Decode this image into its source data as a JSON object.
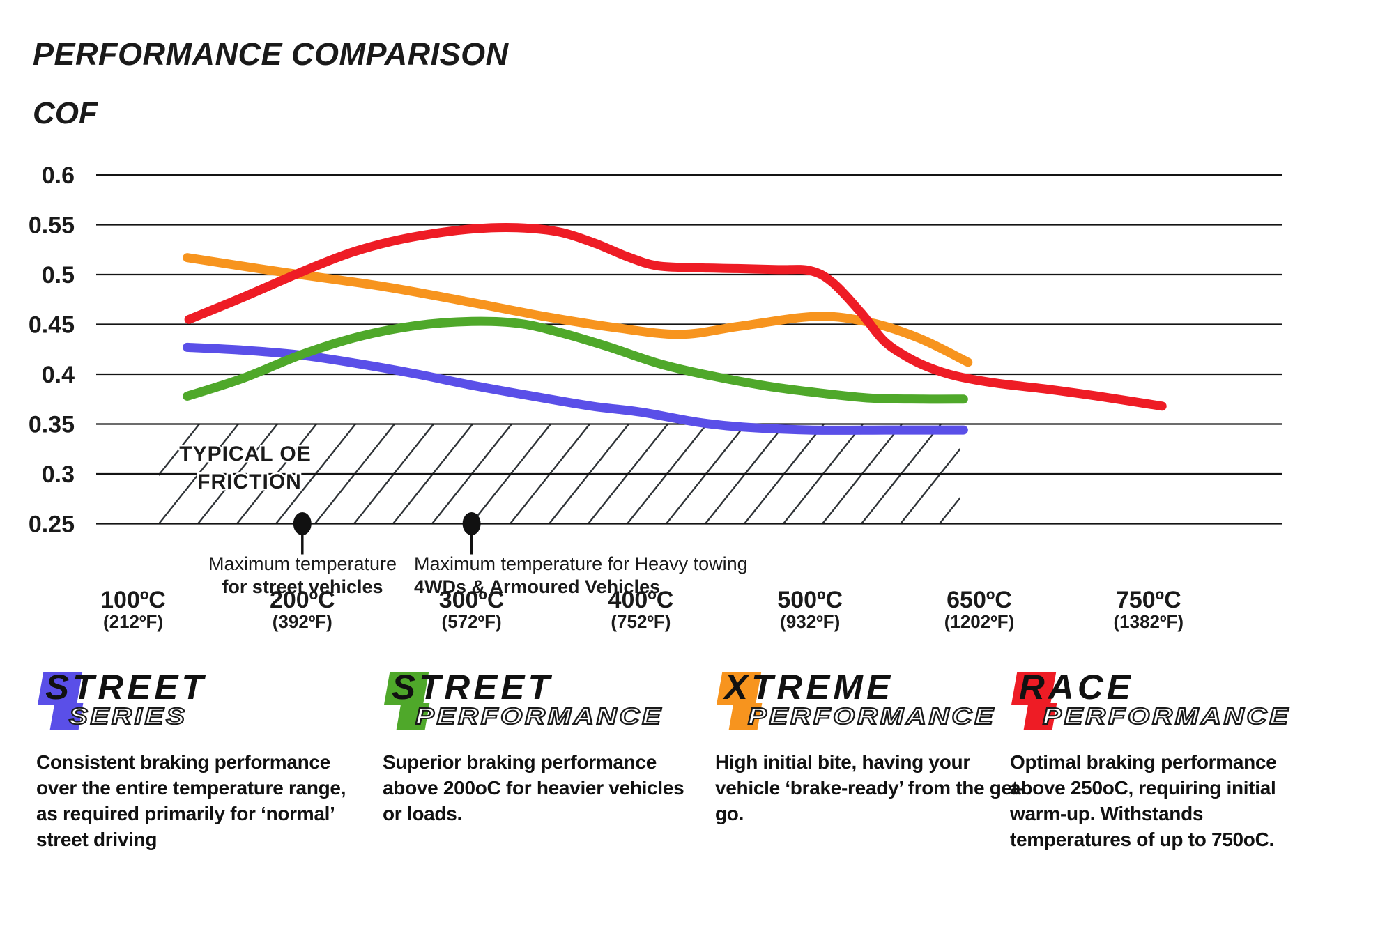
{
  "header": {
    "title": "PERFORMANCE COMPARISON",
    "cof": "COF"
  },
  "chart_data": {
    "type": "line",
    "title": "PERFORMANCE COMPARISON",
    "ylabel": "COF",
    "ylim": [
      0.25,
      0.6
    ],
    "grid": true,
    "y_axis": {
      "ticks": [
        0.6,
        0.55,
        0.5,
        0.45,
        0.4,
        0.35,
        0.3,
        0.25
      ]
    },
    "x_axis": {
      "unit": "°C",
      "ticks": [
        {
          "temp_c": 100,
          "label_c": "100ºC",
          "label_f": "(212ºF)"
        },
        {
          "temp_c": 200,
          "label_c": "200ºC",
          "label_f": "(392ºF)"
        },
        {
          "temp_c": 300,
          "label_c": "300ºC",
          "label_f": "(572ºF)"
        },
        {
          "temp_c": 400,
          "label_c": "400ºC",
          "label_f": "(752ºF)"
        },
        {
          "temp_c": 500,
          "label_c": "500ºC",
          "label_f": "(932ºF)"
        },
        {
          "temp_c": 650,
          "label_c": "650ºC",
          "label_f": "(1202ºF)"
        },
        {
          "temp_c": 750,
          "label_c": "750ºC",
          "label_f": "(1382ºF)"
        }
      ]
    },
    "oe_zone": {
      "line1": "TYPICAL OE",
      "line2": "FRICTION",
      "cof_min": 0.25,
      "cof_max": 0.35,
      "text_color": "#6d6e71"
    },
    "annotations": [
      {
        "temp_c": 200,
        "line1": "Maximum temperature",
        "line2": "for street vehicles"
      },
      {
        "temp_c": 300,
        "line1": "Maximum temperature for Heavy towing",
        "line2": "4WDs & Armoured Vehicles"
      }
    ],
    "series": [
      {
        "name": "Street Series",
        "color": "#5a4fe8",
        "points": [
          [
            132,
            0.427
          ],
          [
            166,
            0.424
          ],
          [
            200,
            0.419
          ],
          [
            235,
            0.41
          ],
          [
            268,
            0.4
          ],
          [
            300,
            0.389
          ],
          [
            336,
            0.378
          ],
          [
            371,
            0.368
          ],
          [
            400,
            0.362
          ],
          [
            433,
            0.352
          ],
          [
            460,
            0.347
          ],
          [
            500,
            0.344
          ],
          [
            570,
            0.344
          ],
          [
            636,
            0.344
          ]
        ]
      },
      {
        "name": "Street Performance",
        "color": "#4fa82a",
        "points": [
          [
            132,
            0.378
          ],
          [
            165,
            0.396
          ],
          [
            200,
            0.42
          ],
          [
            234,
            0.438
          ],
          [
            268,
            0.449
          ],
          [
            300,
            0.453
          ],
          [
            328,
            0.451
          ],
          [
            352,
            0.442
          ],
          [
            380,
            0.428
          ],
          [
            410,
            0.411
          ],
          [
            437,
            0.4
          ],
          [
            475,
            0.388
          ],
          [
            510,
            0.381
          ],
          [
            554,
            0.376
          ],
          [
            600,
            0.375
          ],
          [
            636,
            0.375
          ]
        ]
      },
      {
        "name": "Xtreme Performance",
        "color": "#f7941e",
        "points": [
          [
            132,
            0.517
          ],
          [
            186,
            0.503
          ],
          [
            248,
            0.488
          ],
          [
            300,
            0.472
          ],
          [
            343,
            0.458
          ],
          [
            384,
            0.447
          ],
          [
            423,
            0.44
          ],
          [
            458,
            0.448
          ],
          [
            505,
            0.458
          ],
          [
            553,
            0.452
          ],
          [
            597,
            0.436
          ],
          [
            640,
            0.412
          ]
        ]
      },
      {
        "name": "Race Performance",
        "color": "#ee1c25",
        "points": [
          [
            133,
            0.455
          ],
          [
            166,
            0.478
          ],
          [
            200,
            0.503
          ],
          [
            227,
            0.521
          ],
          [
            252,
            0.533
          ],
          [
            277,
            0.541
          ],
          [
            302,
            0.546
          ],
          [
            327,
            0.547
          ],
          [
            351,
            0.543
          ],
          [
            372,
            0.532
          ],
          [
            392,
            0.518
          ],
          [
            409,
            0.509
          ],
          [
            429,
            0.507
          ],
          [
            457,
            0.506
          ],
          [
            481,
            0.505
          ],
          [
            500,
            0.504
          ],
          [
            520,
            0.492
          ],
          [
            545,
            0.462
          ],
          [
            565,
            0.434
          ],
          [
            585,
            0.418
          ],
          [
            605,
            0.407
          ],
          [
            630,
            0.398
          ],
          [
            660,
            0.391
          ],
          [
            690,
            0.385
          ],
          [
            720,
            0.378
          ],
          [
            758,
            0.368
          ]
        ]
      }
    ]
  },
  "legend": [
    {
      "word1": "STREET",
      "word2": "SERIES",
      "color": "#5a4fe8",
      "description": "Consistent braking performance over the entire temperature range, as required primarily for ‘normal’ street driving"
    },
    {
      "word1": "STREET",
      "word2": "PERFORMANCE",
      "color": "#4fa82a",
      "description": "Superior braking performance above 200oC for heavier vehicles or loads."
    },
    {
      "word1": "XTREME",
      "word2": "PERFORMANCE",
      "color": "#f7941e",
      "description": "High initial bite, having your vehicle ‘brake-ready’ from the get-go."
    },
    {
      "word1": "RACE",
      "word2": "PERFORMANCE",
      "color": "#ee1c25",
      "description": "Optimal braking performance above 250oC, requiring initial warm-up. Withstands temperatures of up to 750oC."
    }
  ]
}
